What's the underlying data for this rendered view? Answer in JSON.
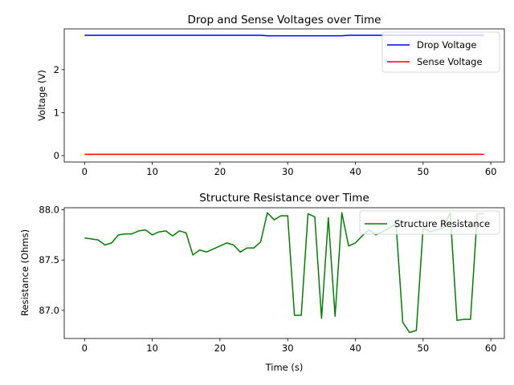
{
  "chart_data": [
    {
      "type": "line",
      "title": "Drop and Sense Voltages over Time",
      "xlabel": "",
      "ylabel": "Voltage (V)",
      "xlim": [
        -3,
        62
      ],
      "ylim": [
        -0.15,
        2.95
      ],
      "xticks": [
        0,
        10,
        20,
        30,
        40,
        50,
        60
      ],
      "yticks": [
        0,
        1,
        2
      ],
      "grid": false,
      "legend": "top-right",
      "x": [
        0,
        1,
        2,
        3,
        4,
        5,
        6,
        7,
        8,
        9,
        10,
        11,
        12,
        13,
        14,
        15,
        16,
        17,
        18,
        19,
        20,
        21,
        22,
        23,
        24,
        25,
        26,
        27,
        28,
        29,
        30,
        31,
        32,
        33,
        34,
        35,
        36,
        37,
        38,
        39,
        40,
        41,
        42,
        43,
        44,
        45,
        46,
        47,
        48,
        49,
        50,
        51,
        52,
        53,
        54,
        55,
        56,
        57,
        58,
        59
      ],
      "series": [
        {
          "name": "Drop Voltage",
          "color": "#0000ff",
          "values": [
            2.8,
            2.8,
            2.8,
            2.8,
            2.8,
            2.8,
            2.8,
            2.8,
            2.8,
            2.8,
            2.8,
            2.8,
            2.8,
            2.8,
            2.8,
            2.8,
            2.8,
            2.8,
            2.8,
            2.8,
            2.8,
            2.8,
            2.8,
            2.8,
            2.8,
            2.8,
            2.8,
            2.79,
            2.79,
            2.79,
            2.79,
            2.79,
            2.79,
            2.79,
            2.79,
            2.79,
            2.79,
            2.79,
            2.79,
            2.8,
            2.8,
            2.8,
            2.8,
            2.8,
            2.8,
            2.8,
            2.8,
            2.8,
            2.8,
            2.8,
            2.8,
            2.8,
            2.8,
            2.8,
            2.8,
            2.8,
            2.8,
            2.8,
            2.8,
            2.8
          ]
        },
        {
          "name": "Sense Voltage",
          "color": "#ff0000",
          "values": [
            0.03,
            0.03,
            0.03,
            0.03,
            0.03,
            0.03,
            0.03,
            0.03,
            0.03,
            0.03,
            0.03,
            0.03,
            0.03,
            0.03,
            0.03,
            0.03,
            0.03,
            0.03,
            0.03,
            0.03,
            0.03,
            0.03,
            0.03,
            0.03,
            0.03,
            0.03,
            0.03,
            0.03,
            0.03,
            0.03,
            0.03,
            0.03,
            0.03,
            0.03,
            0.03,
            0.03,
            0.03,
            0.03,
            0.03,
            0.03,
            0.03,
            0.03,
            0.03,
            0.03,
            0.03,
            0.03,
            0.03,
            0.03,
            0.03,
            0.03,
            0.03,
            0.03,
            0.03,
            0.03,
            0.03,
            0.03,
            0.03,
            0.03,
            0.03,
            0.03
          ]
        }
      ]
    },
    {
      "type": "line",
      "title": "Structure Resistance over Time",
      "xlabel": "Time (s)",
      "ylabel": "Resistance (Ohms)",
      "xlim": [
        -3,
        62
      ],
      "ylim": [
        86.72,
        88.02
      ],
      "xticks": [
        0,
        10,
        20,
        30,
        40,
        50,
        60
      ],
      "yticks": [
        "87.0",
        "87.5",
        "88.0"
      ],
      "grid": false,
      "legend": "top-right",
      "x": [
        0,
        1,
        2,
        3,
        4,
        5,
        6,
        7,
        8,
        9,
        10,
        11,
        12,
        13,
        14,
        15,
        16,
        17,
        18,
        19,
        20,
        21,
        22,
        23,
        24,
        25,
        26,
        27,
        28,
        29,
        30,
        31,
        32,
        33,
        34,
        35,
        36,
        37,
        38,
        39,
        40,
        41,
        42,
        43,
        44,
        45,
        46,
        47,
        48,
        49,
        50,
        51,
        52,
        53,
        54,
        55,
        56,
        57,
        58,
        59
      ],
      "series": [
        {
          "name": "Structure Resistance",
          "color": "#008000",
          "values": [
            87.72,
            87.71,
            87.7,
            87.65,
            87.67,
            87.75,
            87.76,
            87.76,
            87.79,
            87.8,
            87.75,
            87.78,
            87.79,
            87.74,
            87.79,
            87.77,
            87.55,
            87.6,
            87.58,
            87.61,
            87.64,
            87.67,
            87.65,
            87.58,
            87.62,
            87.62,
            87.68,
            87.97,
            87.9,
            87.94,
            87.94,
            86.95,
            86.95,
            87.96,
            87.93,
            86.92,
            87.92,
            86.94,
            87.97,
            87.64,
            87.67,
            87.74,
            87.8,
            87.75,
            87.78,
            87.82,
            87.86,
            86.88,
            86.78,
            86.8,
            87.82,
            87.78,
            87.8,
            87.82,
            87.97,
            86.9,
            86.91,
            86.91,
            87.96,
            87.96
          ]
        }
      ]
    }
  ]
}
